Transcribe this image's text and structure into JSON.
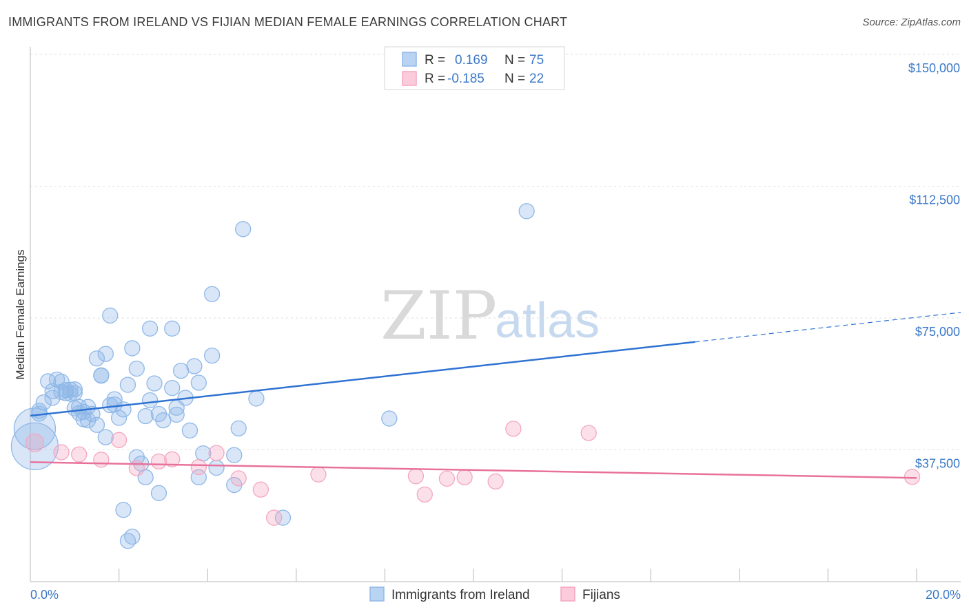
{
  "chart_data": {
    "type": "scatter",
    "title": "IMMIGRANTS FROM IRELAND VS FIJIAN MEDIAN FEMALE EARNINGS CORRELATION CHART",
    "source": "Source: ZipAtlas.com",
    "xlabel": "",
    "ylabel": "Median Female Earnings",
    "xlim": [
      0,
      20
    ],
    "ylim": [
      0,
      150000
    ],
    "x_tick_labels": [
      "0.0%",
      "20.0%"
    ],
    "y_ticks": [
      {
        "value": 150000,
        "label": "$150,000"
      },
      {
        "value": 112500,
        "label": "$112,500"
      },
      {
        "value": 75000,
        "label": "$75,000"
      },
      {
        "value": 37500,
        "label": "$37,500"
      }
    ],
    "watermark": {
      "zip": "ZIP",
      "atlas": "atlas"
    },
    "legend": {
      "r_label": "R =",
      "n_label": "N =",
      "entries": [
        {
          "r": "0.169",
          "n": "75"
        },
        {
          "r": "-0.185",
          "n": "22"
        }
      ]
    },
    "series": [
      {
        "name": "Immigrants from Ireland",
        "color": "#8fb8e8",
        "line_color": "#2e72d2",
        "trend": {
          "x0": 0,
          "y0": 47200,
          "x1": 15,
          "y1": 68200,
          "x_dash_end": 20,
          "y_dash_end": 75200
        },
        "points": [
          [
            0.1,
            43500,
            30
          ],
          [
            0.1,
            38500,
            34
          ],
          [
            0.2,
            47800,
            11
          ],
          [
            0.2,
            48600,
            11
          ],
          [
            0.3,
            51000,
            11
          ],
          [
            0.4,
            57000,
            11
          ],
          [
            0.5,
            54200,
            11
          ],
          [
            0.5,
            52300,
            11
          ],
          [
            0.6,
            57500,
            11
          ],
          [
            0.7,
            54000,
            11
          ],
          [
            0.7,
            56900,
            11
          ],
          [
            0.8,
            53600,
            11
          ],
          [
            0.8,
            54500,
            11
          ],
          [
            0.9,
            53500,
            11
          ],
          [
            0.9,
            54600,
            11
          ],
          [
            1.0,
            53700,
            11
          ],
          [
            1.0,
            54700,
            11
          ],
          [
            1.0,
            49300,
            11
          ],
          [
            1.1,
            48000,
            11
          ],
          [
            1.1,
            49700,
            11
          ],
          [
            1.2,
            48300,
            11
          ],
          [
            1.2,
            46200,
            11
          ],
          [
            1.3,
            49700,
            11
          ],
          [
            1.3,
            45900,
            11
          ],
          [
            1.4,
            47700,
            11
          ],
          [
            1.5,
            44600,
            11
          ],
          [
            1.5,
            63500,
            11
          ],
          [
            1.6,
            58600,
            11
          ],
          [
            1.6,
            58700,
            11
          ],
          [
            1.7,
            41100,
            11
          ],
          [
            1.7,
            64800,
            11
          ],
          [
            1.8,
            50200,
            11
          ],
          [
            1.8,
            75700,
            11
          ],
          [
            1.9,
            50400,
            11
          ],
          [
            1.9,
            51900,
            11
          ],
          [
            2.0,
            46600,
            11
          ],
          [
            2.1,
            49000,
            11
          ],
          [
            2.1,
            20400,
            11
          ],
          [
            2.2,
            11600,
            11
          ],
          [
            2.2,
            56000,
            11
          ],
          [
            2.3,
            66400,
            11
          ],
          [
            2.3,
            12800,
            11
          ],
          [
            2.4,
            60600,
            11
          ],
          [
            2.4,
            35400,
            11
          ],
          [
            2.5,
            33600,
            11
          ],
          [
            2.6,
            29700,
            11
          ],
          [
            2.6,
            47100,
            11
          ],
          [
            2.7,
            72000,
            11
          ],
          [
            2.7,
            51600,
            11
          ],
          [
            2.8,
            56400,
            11
          ],
          [
            2.9,
            47700,
            11
          ],
          [
            2.9,
            25200,
            11
          ],
          [
            3.0,
            45900,
            11
          ],
          [
            3.2,
            55100,
            11
          ],
          [
            3.2,
            72000,
            11
          ],
          [
            3.3,
            49500,
            11
          ],
          [
            3.3,
            47500,
            11
          ],
          [
            3.4,
            60000,
            11
          ],
          [
            3.5,
            52300,
            11
          ],
          [
            3.6,
            43000,
            11
          ],
          [
            3.7,
            61300,
            11
          ],
          [
            3.8,
            56600,
            11
          ],
          [
            3.8,
            29700,
            11
          ],
          [
            3.9,
            36500,
            11
          ],
          [
            4.1,
            64300,
            11
          ],
          [
            4.1,
            81800,
            11
          ],
          [
            4.2,
            32400,
            11
          ],
          [
            4.6,
            36000,
            11
          ],
          [
            4.6,
            27500,
            11
          ],
          [
            4.7,
            43600,
            11
          ],
          [
            4.8,
            100300,
            11
          ],
          [
            5.1,
            52100,
            11
          ],
          [
            5.7,
            18200,
            11
          ],
          [
            8.1,
            46400,
            11
          ],
          [
            11.2,
            105400,
            11
          ]
        ]
      },
      {
        "name": "Fijians",
        "color": "#f4a6c0",
        "line_color": "#e8719b",
        "trend": {
          "x0": 0,
          "y0": 34000,
          "x1": 20,
          "y1": 29500
        },
        "points": [
          [
            0.1,
            39500,
            13
          ],
          [
            0.7,
            36800,
            11
          ],
          [
            1.1,
            36200,
            11
          ],
          [
            1.6,
            34700,
            11
          ],
          [
            2.0,
            40300,
            11
          ],
          [
            2.4,
            32300,
            11
          ],
          [
            2.9,
            34200,
            11
          ],
          [
            3.2,
            34800,
            11
          ],
          [
            3.8,
            32600,
            11
          ],
          [
            4.2,
            36600,
            11
          ],
          [
            4.7,
            29400,
            11
          ],
          [
            5.2,
            26200,
            11
          ],
          [
            5.5,
            18200,
            11
          ],
          [
            6.5,
            30500,
            11
          ],
          [
            8.7,
            30000,
            11
          ],
          [
            8.9,
            24800,
            11
          ],
          [
            9.4,
            29300,
            11
          ],
          [
            9.8,
            29700,
            11
          ],
          [
            10.5,
            28500,
            11
          ],
          [
            10.9,
            43500,
            11
          ],
          [
            12.6,
            42300,
            11
          ],
          [
            19.9,
            29800,
            11
          ]
        ]
      }
    ]
  }
}
